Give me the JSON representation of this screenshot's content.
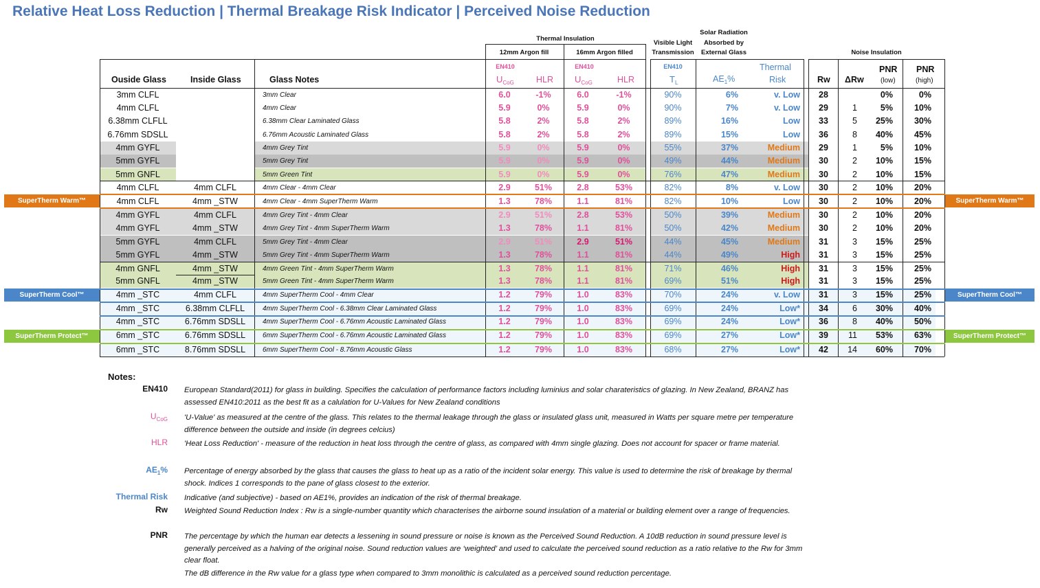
{
  "title": "Relative Heat Loss Reduction | Thermal Breakage Risk Indicator | Perceived Noise Reduction",
  "groups": {
    "thermal": "Thermal Insulation",
    "argon12": "12mm Argon fill",
    "argon16": "16mm Argon filled",
    "vlt1": "Visible Light",
    "vlt2": "Transmission",
    "solar1": "Solar Radiation",
    "solar2": "Absorbed by",
    "solar3": "External Glass",
    "noise": "Noise Insulation"
  },
  "headers": {
    "outside": "Ouside Glass",
    "inside": "Inside Glass",
    "notes": "Glass Notes",
    "en410": "EN410",
    "ucog_main": "U",
    "ucog_sub": "CoG",
    "hlr": "HLR",
    "tl_main": "T",
    "tl_sub": "L",
    "ae_main": "AE",
    "ae_sub": "1",
    "ae_suffix": "%",
    "thermal_risk_1": "Thermal",
    "thermal_risk_2": "Risk",
    "rw": "Rw",
    "drw": "ΔRw",
    "pnr": "PNR",
    "pnr_low": "(low)",
    "pnr_high": "(high)"
  },
  "bands": {
    "warm": "SuperTherm Warm™",
    "cool": "SuperTherm Cool™",
    "protect": "SuperTherm Protect™"
  },
  "colors": {
    "title": "#4a76b8",
    "pink": "#e0509a",
    "blue": "#4a86c8",
    "orange": "#e07818",
    "red": "#d01818",
    "warm_band": "#e07818",
    "cool_band": "#4a86c8",
    "protect_band": "#8dc63f",
    "grey_light": "#d9d9d9",
    "grey_dark": "#bfbfbf",
    "green_light": "#d8e4bc",
    "cool_row": "#eef6fb"
  },
  "rows": [
    {
      "outside": "3mm CLFL",
      "inside": "",
      "note": "3mm Clear",
      "u12": "6.0",
      "hlr12": "-1%",
      "u16": "6.0",
      "hlr16": "-1%",
      "tl": "90%",
      "ae": "6%",
      "risk": "v. Low",
      "rw": "28",
      "drw": "",
      "pnr_low": "0%",
      "pnr_high": "0%"
    },
    {
      "outside": "4mm CLFL",
      "inside": "",
      "note": "4mm Clear",
      "u12": "5.9",
      "hlr12": "0%",
      "u16": "5.9",
      "hlr16": "0%",
      "tl": "90%",
      "ae": "7%",
      "risk": "v. Low",
      "rw": "29",
      "drw": "1",
      "pnr_low": "5%",
      "pnr_high": "10%"
    },
    {
      "outside": "6.38mm CLFLL",
      "inside": "",
      "note": "6.38mm Clear Laminated Glass",
      "u12": "5.8",
      "hlr12": "2%",
      "u16": "5.8",
      "hlr16": "2%",
      "tl": "89%",
      "ae": "16%",
      "risk": "Low",
      "rw": "33",
      "drw": "5",
      "pnr_low": "25%",
      "pnr_high": "30%"
    },
    {
      "outside": "6.76mm SDSLL",
      "inside": "",
      "note": "6.76mm Acoustic Laminated Glass",
      "u12": "5.8",
      "hlr12": "2%",
      "u16": "5.8",
      "hlr16": "2%",
      "tl": "89%",
      "ae": "15%",
      "risk": "Low",
      "rw": "36",
      "drw": "8",
      "pnr_low": "40%",
      "pnr_high": "45%"
    },
    {
      "outside": "4mm GYFL",
      "inside": "",
      "note": "4mm Grey Tint",
      "u12": "5.9",
      "hlr12": "0%",
      "u16": "5.9",
      "hlr16": "0%",
      "tl": "55%",
      "ae": "37%",
      "risk": "Medium",
      "rw": "29",
      "drw": "1",
      "pnr_low": "5%",
      "pnr_high": "10%"
    },
    {
      "outside": "5mm GYFL",
      "inside": "",
      "note": "5mm Grey Tint",
      "u12": "5.9",
      "hlr12": "0%",
      "u16": "5.9",
      "hlr16": "0%",
      "tl": "49%",
      "ae": "44%",
      "risk": "Medium",
      "rw": "30",
      "drw": "2",
      "pnr_low": "10%",
      "pnr_high": "15%"
    },
    {
      "outside": "5mm GNFL",
      "inside": "",
      "note": "5mm Green Tint",
      "u12": "5.9",
      "hlr12": "0%",
      "u16": "5.9",
      "hlr16": "0%",
      "tl": "76%",
      "ae": "47%",
      "risk": "Medium",
      "rw": "30",
      "drw": "2",
      "pnr_low": "10%",
      "pnr_high": "15%"
    },
    {
      "outside": "4mm CLFL",
      "inside": "4mm CLFL",
      "note": "4mm Clear - 4mm Clear",
      "u12": "2.9",
      "hlr12": "51%",
      "u16": "2.8",
      "hlr16": "53%",
      "tl": "82%",
      "ae": "8%",
      "risk": "v. Low",
      "rw": "30",
      "drw": "2",
      "pnr_low": "10%",
      "pnr_high": "20%"
    },
    {
      "outside": "4mm CLFL",
      "inside": "4mm _STW",
      "note": "4mm Clear - 4mm SuperTherm Warm",
      "u12": "1.3",
      "hlr12": "78%",
      "u16": "1.1",
      "hlr16": "81%",
      "tl": "82%",
      "ae": "10%",
      "risk": "Low",
      "rw": "30",
      "drw": "2",
      "pnr_low": "10%",
      "pnr_high": "20%"
    },
    {
      "outside": "4mm GYFL",
      "inside": "4mm CLFL",
      "note": "4mm Grey Tint - 4mm Clear",
      "u12": "2.9",
      "hlr12": "51%",
      "u16": "2.8",
      "hlr16": "53%",
      "tl": "50%",
      "ae": "39%",
      "risk": "Medium",
      "rw": "30",
      "drw": "2",
      "pnr_low": "10%",
      "pnr_high": "20%"
    },
    {
      "outside": "4mm GYFL",
      "inside": "4mm _STW",
      "note": "4mm Grey Tint - 4mm SuperTherm Warm",
      "u12": "1.3",
      "hlr12": "78%",
      "u16": "1.1",
      "hlr16": "81%",
      "tl": "50%",
      "ae": "42%",
      "risk": "Medium",
      "rw": "30",
      "drw": "2",
      "pnr_low": "10%",
      "pnr_high": "20%"
    },
    {
      "outside": "5mm GYFL",
      "inside": "4mm CLFL",
      "note": "5mm Grey Tint - 4mm Clear",
      "u12": "2.9",
      "hlr12": "51%",
      "u16": "2.9",
      "hlr16": "51%",
      "tl": "44%",
      "ae": "45%",
      "risk": "Medium",
      "rw": "31",
      "drw": "3",
      "pnr_low": "15%",
      "pnr_high": "25%"
    },
    {
      "outside": "5mm GYFL",
      "inside": "4mm _STW",
      "note": "5mm Grey Tint - 4mm SuperTherm Warm",
      "u12": "1.3",
      "hlr12": "78%",
      "u16": "1.1",
      "hlr16": "81%",
      "tl": "44%",
      "ae": "49%",
      "risk": "High",
      "rw": "31",
      "drw": "3",
      "pnr_low": "15%",
      "pnr_high": "25%"
    },
    {
      "outside": "4mm GNFL",
      "inside": "4mm _STW",
      "note": "4mm Green Tint - 4mm SuperTherm Warm",
      "u12": "1.3",
      "hlr12": "78%",
      "u16": "1.1",
      "hlr16": "81%",
      "tl": "71%",
      "ae": "46%",
      "risk": "High",
      "rw": "31",
      "drw": "3",
      "pnr_low": "15%",
      "pnr_high": "25%"
    },
    {
      "outside": "5mm GNFL",
      "inside": "4mm _STW",
      "note": "5mm Green Tint - 4mm SuperTherm Warm",
      "u12": "1.3",
      "hlr12": "78%",
      "u16": "1.1",
      "hlr16": "81%",
      "tl": "69%",
      "ae": "51%",
      "risk": "High",
      "rw": "31",
      "drw": "3",
      "pnr_low": "15%",
      "pnr_high": "25%"
    },
    {
      "outside": "4mm _STC",
      "inside": "4mm CLFL",
      "note": "4mm SuperTherm Cool - 4mm Clear",
      "u12": "1.2",
      "hlr12": "79%",
      "u16": "1.0",
      "hlr16": "83%",
      "tl": "70%",
      "ae": "24%",
      "risk": "v. Low",
      "rw": "31",
      "drw": "3",
      "pnr_low": "15%",
      "pnr_high": "25%"
    },
    {
      "outside": "4mm _STC",
      "inside": "6.38mm CLFLL",
      "note": "4mm SuperTherm Cool - 6.38mm Clear Laminated Glass",
      "u12": "1.2",
      "hlr12": "79%",
      "u16": "1.0",
      "hlr16": "83%",
      "tl": "69%",
      "ae": "24%",
      "risk": "Low*",
      "rw": "34",
      "drw": "6",
      "pnr_low": "30%",
      "pnr_high": "40%"
    },
    {
      "outside": "4mm _STC",
      "inside": "6.76mm SDSLL",
      "note": "4mm SuperTherm Cool - 6.76mm Acoustic Laminated Glass",
      "u12": "1.2",
      "hlr12": "79%",
      "u16": "1.0",
      "hlr16": "83%",
      "tl": "69%",
      "ae": "24%",
      "risk": "Low*",
      "rw": "36",
      "drw": "8",
      "pnr_low": "40%",
      "pnr_high": "50%"
    },
    {
      "outside": "6mm _STC",
      "inside": "6.76mm SDSLL",
      "note": "6mm SuperTherm Cool - 6.76mm Acoustic Laminated Glass",
      "u12": "1.2",
      "hlr12": "79%",
      "u16": "1.0",
      "hlr16": "83%",
      "tl": "69%",
      "ae": "27%",
      "risk": "Low*",
      "rw": "39",
      "drw": "11",
      "pnr_low": "53%",
      "pnr_high": "63%"
    },
    {
      "outside": "6mm _STC",
      "inside": "8.76mm SDSLL",
      "note": "6mm SuperTherm Cool - 8.76mm Acoustic Glass",
      "u12": "1.2",
      "hlr12": "79%",
      "u16": "1.0",
      "hlr16": "83%",
      "tl": "68%",
      "ae": "27%",
      "risk": "Low*",
      "rw": "42",
      "drw": "14",
      "pnr_low": "60%",
      "pnr_high": "70%"
    }
  ],
  "notes": {
    "heading": "Notes:",
    "items": [
      {
        "key": "EN410",
        "text": "European Standard(2011) for glass in building.  Specifies the calculation of performance factors including luminius and solar charateristics of glazing.  In New Zealand, BRANZ has assessed EN410:2011 as the best fit as a calulation for U-Values for New Zealand conditions"
      },
      {
        "key": "U",
        "key_sub": "CoG",
        "text": "'U-Value' as measured at the centre of the glass. This relates to the thermal leakage through the glass or insulated glass unit, measured in Watts per square metre per temperature difference between the outside and inside (in degrees celcius)"
      },
      {
        "key": "HLR",
        "text": "'Heat Loss Reduction' - measure of the reduction in heat loss through the centre of glass, as compared with 4mm single glazing.  Does not account for spacer or frame material."
      },
      {
        "key": "AE",
        "key_sub": "1",
        "key_suffix": "%",
        "text": "Percentage of energy absorbed by the glass that causes the glass to heat up as a ratio of the incident solar energy. This value is used to determine the risk of breakage by thermal shock. Indices 1 corresponds to the pane of glass closest to the exterior."
      },
      {
        "key": "Thermal Risk",
        "text": "Indicative (and subjective) - based on AE1%, provides an indication of the risk of thermal breakage."
      },
      {
        "key": "Rw",
        "text": "Weighted Sound Reduction Index : Rw is a single-number quantity which characterises the airborne sound insulation of a material or building element over a range of frequencies."
      },
      {
        "key": "PNR",
        "text": "The percentage by which the human ear detects a lessening in sound pressure or noise is known as the Perceived Sound Reduction. A 10dB reduction in sound pressure level is generally perceived as a halving of the original noise. Sound reduction values are ‘weighted’ and used to calculate the perceived sound reduction as a ratio relative to the Rw for 3mm clear float."
      },
      {
        "key": "",
        "text": "The dB difference in the Rw value for a glass type when compared to 3mm monolithic is calculated as a perceived sound reduction percentage."
      }
    ]
  }
}
